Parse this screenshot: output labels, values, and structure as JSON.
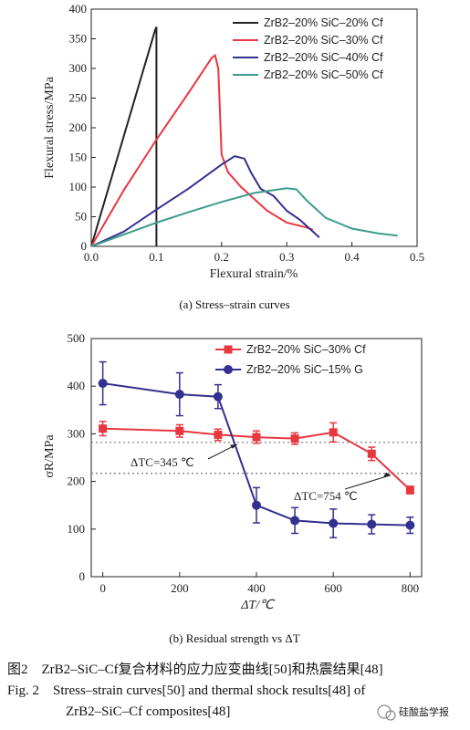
{
  "chart_data": [
    {
      "type": "line",
      "caption": "(a) Stress–strain curves",
      "xlabel": "Flexural strain/%",
      "ylabel": "Flexural stress/MPa",
      "xlim": [
        0,
        0.5
      ],
      "ylim": [
        0,
        400
      ],
      "xticks": [
        "0.0",
        "0.1",
        "0.2",
        "0.3",
        "0.4",
        "0.5"
      ],
      "yticks": [
        "0",
        "50",
        "100",
        "150",
        "200",
        "250",
        "300",
        "350",
        "400"
      ],
      "legend_position": "top-right",
      "series": [
        {
          "name": "ZrB2–20% SiC–20% Cf",
          "color": "#222222",
          "x": [
            0,
            0.098,
            0.1,
            0.1,
            0.1
          ],
          "y": [
            0,
            365,
            370,
            200,
            0
          ]
        },
        {
          "name": "ZrB2–20% SiC–30% Cf",
          "color": "#e8373f",
          "x": [
            0,
            0.05,
            0.1,
            0.15,
            0.185,
            0.19,
            0.195,
            0.2,
            0.21,
            0.23,
            0.25,
            0.27,
            0.3,
            0.33,
            0.34
          ],
          "y": [
            0,
            95,
            180,
            260,
            318,
            322,
            300,
            155,
            125,
            100,
            80,
            60,
            40,
            32,
            28
          ]
        },
        {
          "name": "ZrB2–20% SiC–40% Cf",
          "color": "#33308f",
          "x": [
            0,
            0.05,
            0.1,
            0.15,
            0.2,
            0.22,
            0.235,
            0.245,
            0.26,
            0.28,
            0.3,
            0.32,
            0.34,
            0.35
          ],
          "y": [
            0,
            25,
            62,
            98,
            138,
            152,
            148,
            125,
            97,
            85,
            60,
            45,
            25,
            15
          ]
        },
        {
          "name": "ZrB2–20% SiC–50% Cf",
          "color": "#3a9d8d",
          "x": [
            0,
            0.05,
            0.1,
            0.15,
            0.2,
            0.25,
            0.3,
            0.315,
            0.33,
            0.36,
            0.4,
            0.44,
            0.47
          ],
          "y": [
            0,
            20,
            40,
            58,
            75,
            90,
            98,
            96,
            78,
            48,
            30,
            22,
            18
          ]
        }
      ]
    },
    {
      "type": "line",
      "caption": "(b) Residual strength vs ΔT",
      "xlabel": "ΔT/℃",
      "ylabel": "σR/MPa",
      "xlim": [
        -30,
        830
      ],
      "ylim": [
        0,
        500
      ],
      "xticks": [
        "0",
        "200",
        "400",
        "600",
        "800"
      ],
      "yticks": [
        "0",
        "100",
        "200",
        "300",
        "400",
        "500"
      ],
      "legend_position": "top-right",
      "series": [
        {
          "name": "ZrB2–20% SiC–30% Cf",
          "color": "#e8373f",
          "marker": "square",
          "x": [
            0,
            200,
            300,
            400,
            500,
            600,
            700,
            800
          ],
          "y": [
            311,
            306,
            298,
            293,
            290,
            303,
            258,
            182
          ],
          "err": [
            15,
            13,
            12,
            13,
            12,
            20,
            14,
            8
          ]
        },
        {
          "name": "ZrB2–20% SiC–15% G",
          "color": "#33308f",
          "marker": "circle",
          "x": [
            0,
            200,
            300,
            400,
            500,
            600,
            700,
            800
          ],
          "y": [
            406,
            383,
            378,
            150,
            118,
            112,
            110,
            108
          ],
          "err": [
            45,
            45,
            25,
            37,
            27,
            30,
            20,
            17
          ]
        }
      ],
      "reference_lines": [
        282,
        217
      ],
      "annotations": [
        {
          "text": "ΔTC=345 ℃",
          "x": 345
        },
        {
          "text": "ΔTC=754 ℃",
          "x": 754
        }
      ]
    }
  ],
  "figure_caption_cn": "图2　ZrB2–SiC–Cf复合材料的应力应变曲线[50]和热震结果[48]",
  "figure_caption_en_line1": "Fig. 2　Stress–strain curves[50] and thermal shock results[48] of",
  "figure_caption_en_line2": "ZrB2–SiC–Cf composites[48]",
  "watermark": "硅酸盐学报"
}
